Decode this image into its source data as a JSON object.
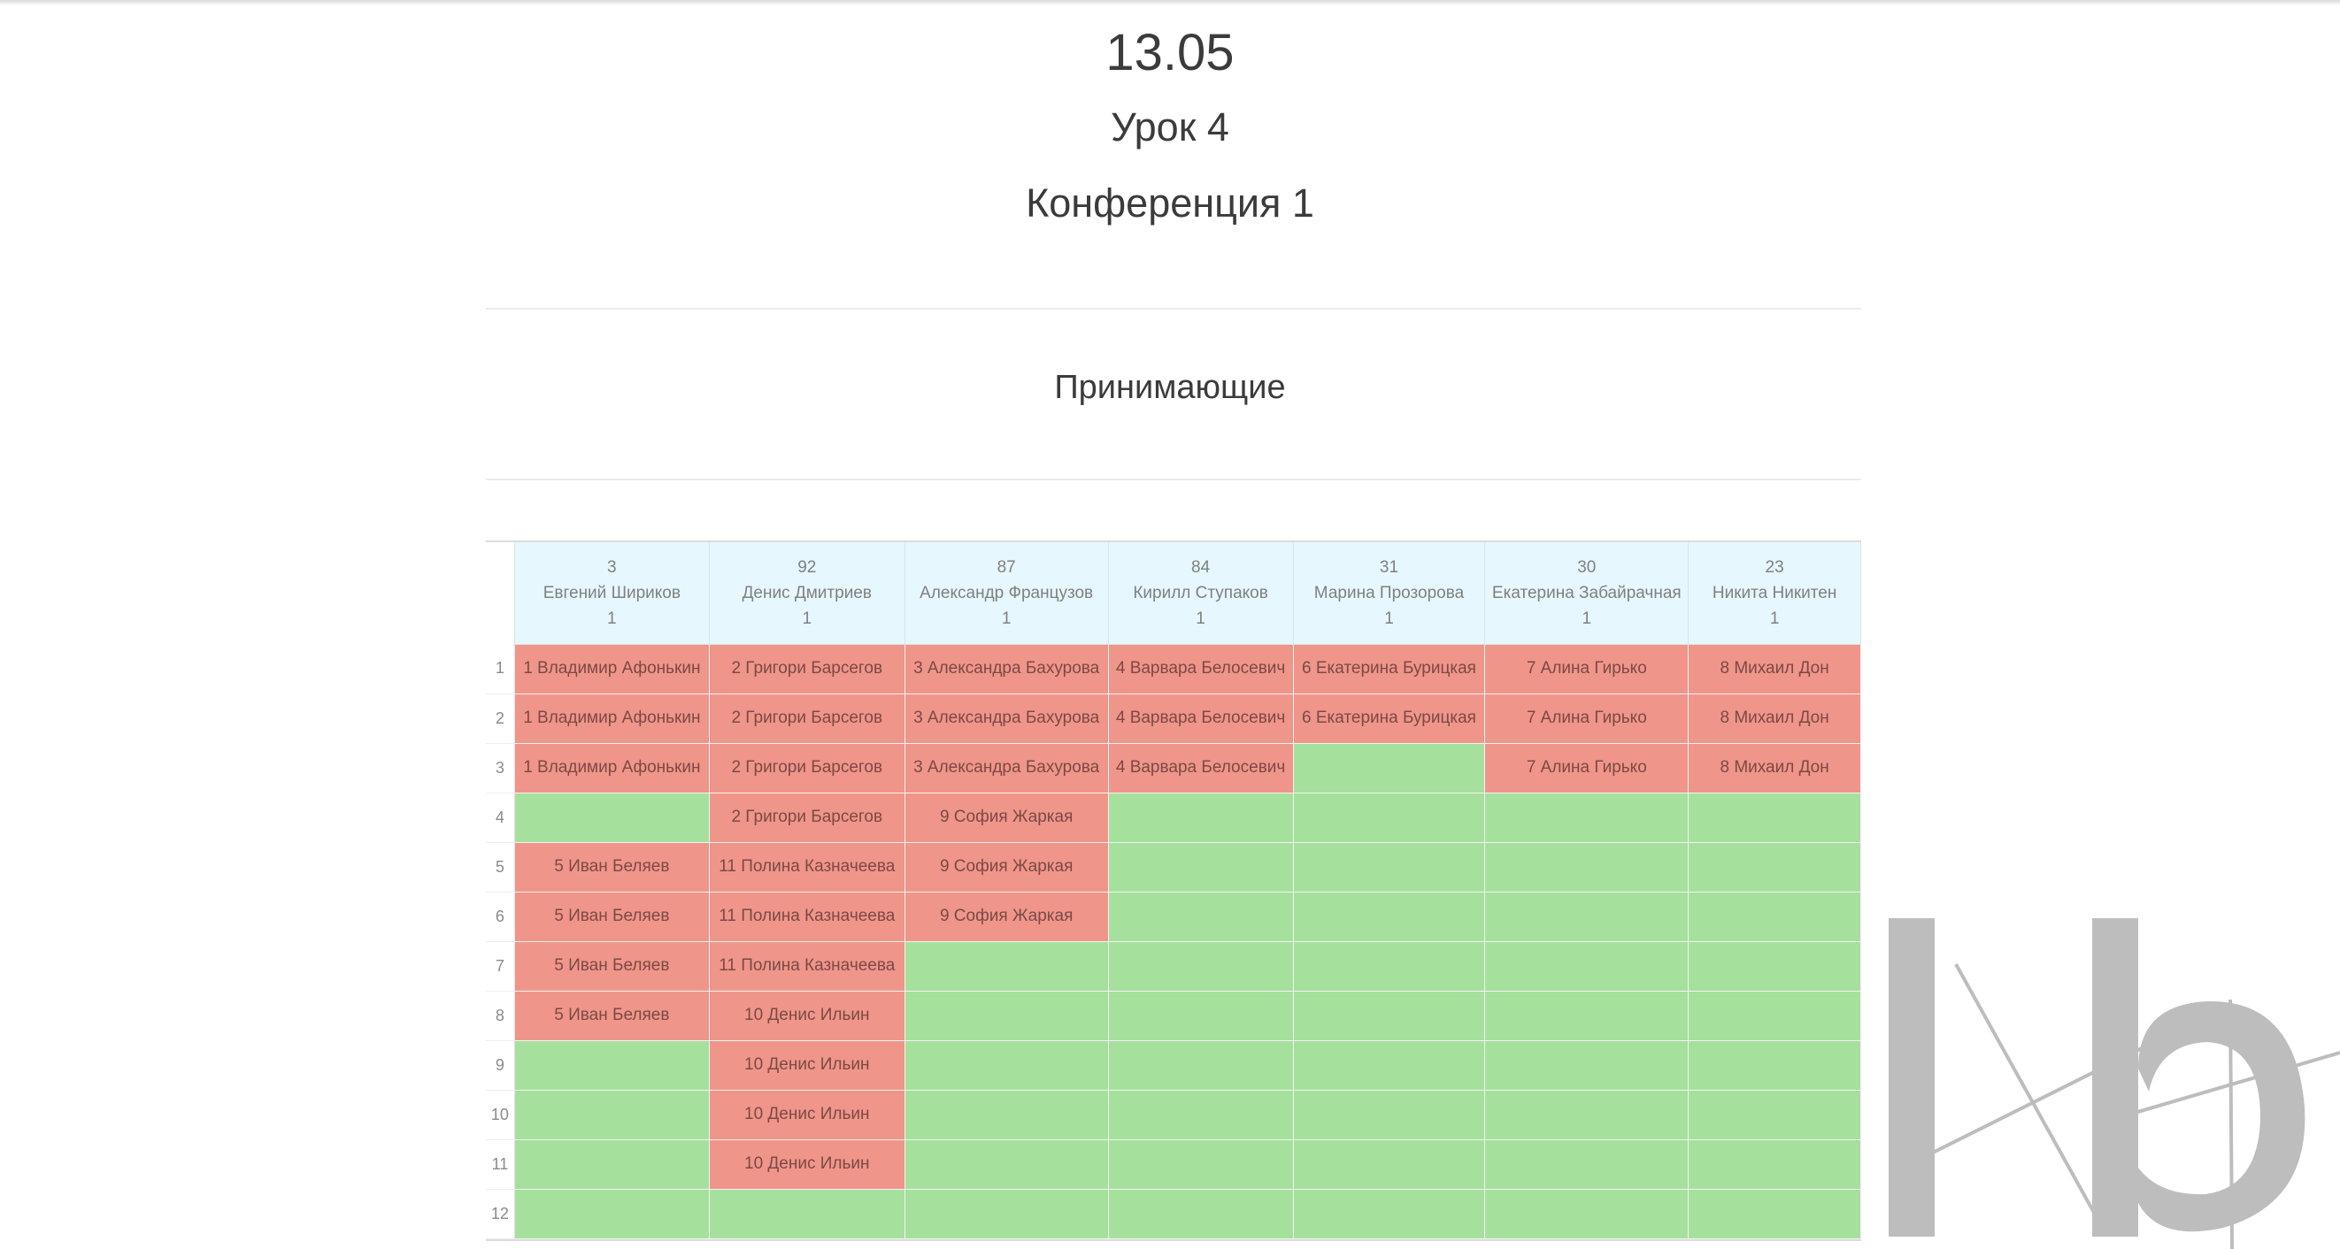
{
  "header": {
    "date": "13.05",
    "lesson": "Урок 4",
    "conference": "Конференция 1",
    "section": "Принимающие"
  },
  "colors": {
    "busy": "#f0958a",
    "free": "#a6e09d",
    "header_bg": "#e6f7fd"
  },
  "columns": [
    {
      "id": "3",
      "name": "Евгений Шириков",
      "count": "1"
    },
    {
      "id": "92",
      "name": "Денис Дмитриев",
      "count": "1"
    },
    {
      "id": "87",
      "name": "Александр Французов",
      "count": "1"
    },
    {
      "id": "84",
      "name": "Кирилл Ступаков",
      "count": "1"
    },
    {
      "id": "31",
      "name": "Марина Прозорова",
      "count": "1"
    },
    {
      "id": "30",
      "name": "Екатерина Забайрачная",
      "count": "1"
    },
    {
      "id": "23",
      "name": "Никита Никитен",
      "count": "1"
    }
  ],
  "rows": [
    {
      "num": "1",
      "cells": [
        "1 Владимир Афонькин",
        "2 Григори Барсегов",
        "3 Александра Бахурова",
        "4 Варвара Белосевич",
        "6 Екатерина Бурицкая",
        "7 Алина Гирько",
        "8 Михаил Дон"
      ]
    },
    {
      "num": "2",
      "cells": [
        "1 Владимир Афонькин",
        "2 Григори Барсегов",
        "3 Александра Бахурова",
        "4 Варвара Белосевич",
        "6 Екатерина Бурицкая",
        "7 Алина Гирько",
        "8 Михаил Дон"
      ]
    },
    {
      "num": "3",
      "cells": [
        "1 Владимир Афонькин",
        "2 Григори Барсегов",
        "3 Александра Бахурова",
        "4 Варвара Белосевич",
        "",
        "7 Алина Гирько",
        "8 Михаил Дон"
      ]
    },
    {
      "num": "4",
      "cells": [
        "",
        "2 Григори Барсегов",
        "9 София Жаркая",
        "",
        "",
        "",
        ""
      ]
    },
    {
      "num": "5",
      "cells": [
        "5 Иван Беляев",
        "11 Полина Казначеева",
        "9 София Жаркая",
        "",
        "",
        "",
        ""
      ]
    },
    {
      "num": "6",
      "cells": [
        "5 Иван Беляев",
        "11 Полина Казначеева",
        "9 София Жаркая",
        "",
        "",
        "",
        ""
      ]
    },
    {
      "num": "7",
      "cells": [
        "5 Иван Беляев",
        "11 Полина Казначеева",
        "",
        "",
        "",
        "",
        ""
      ]
    },
    {
      "num": "8",
      "cells": [
        "5 Иван Беляев",
        "10 Денис Ильин",
        "",
        "",
        "",
        "",
        ""
      ]
    },
    {
      "num": "9",
      "cells": [
        "",
        "10 Денис Ильин",
        "",
        "",
        "",
        "",
        ""
      ]
    },
    {
      "num": "10",
      "cells": [
        "",
        "10 Денис Ильин",
        "",
        "",
        "",
        "",
        ""
      ]
    },
    {
      "num": "11",
      "cells": [
        "",
        "10 Денис Ильин",
        "",
        "",
        "",
        "",
        ""
      ]
    },
    {
      "num": "12",
      "cells": [
        "",
        "",
        "",
        "",
        "",
        "",
        ""
      ]
    }
  ],
  "watermark": {
    "icon": "itb-logo-watermark"
  }
}
